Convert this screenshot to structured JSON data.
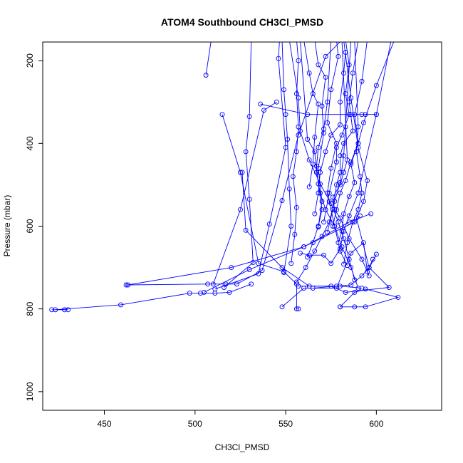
{
  "chart_data": {
    "type": "line",
    "title": "ATOM4 Southbound CH3Cl_PMSD",
    "xlabel": "CH3Cl_PMSD",
    "ylabel": "Pressure (mbar)",
    "xlim": [
      416,
      636
    ],
    "ylim": [
      1045,
      155
    ],
    "y_axis_inverted": true,
    "x_ticks": [
      450,
      500,
      550,
      600
    ],
    "y_ticks": [
      200,
      400,
      600,
      800,
      1000
    ],
    "markers": "open-circle",
    "grid": false,
    "legend": "none",
    "colors": {
      "series": "#0000ff",
      "axis": "#000000",
      "background": "#ffffff"
    },
    "series": [
      {
        "values": [
          [
            421,
            802
          ],
          [
            428,
            802
          ],
          [
            430,
            802
          ]
        ]
      },
      {
        "values": [
          [
            423,
            802
          ],
          [
            459,
            790
          ],
          [
            497,
            762
          ],
          [
            503,
            762
          ],
          [
            511,
            762
          ],
          [
            519,
            760
          ],
          [
            531,
            740
          ]
        ]
      },
      {
        "values": [
          [
            462,
            742
          ],
          [
            507,
            740
          ],
          [
            517,
            740
          ],
          [
            523,
            740
          ],
          [
            537,
            707
          ],
          [
            548,
            538
          ],
          [
            557,
            380
          ],
          [
            572,
            190
          ],
          [
            590,
            110
          ]
        ]
      },
      {
        "values": [
          [
            510,
            740
          ],
          [
            525,
            560
          ],
          [
            538,
            320
          ],
          [
            545,
            300
          ]
        ]
      },
      {
        "values": [
          [
            511,
            752
          ],
          [
            535,
            715
          ],
          [
            541,
            595
          ],
          [
            550,
            410
          ],
          [
            546,
            195
          ],
          [
            547,
            120
          ]
        ]
      },
      {
        "values": [
          [
            516,
            748
          ],
          [
            532,
            688
          ],
          [
            530,
            535
          ],
          [
            528,
            420
          ],
          [
            530,
            335
          ],
          [
            531,
            150
          ]
        ]
      },
      {
        "values": [
          [
            526,
            470
          ],
          [
            528,
            610
          ],
          [
            548,
            700
          ],
          [
            563,
            745
          ],
          [
            580,
            745
          ],
          [
            592,
            750
          ]
        ]
      },
      {
        "values": [
          [
            515,
            330
          ],
          [
            525,
            470
          ],
          [
            535,
            690
          ],
          [
            549,
            710
          ],
          [
            556,
            740
          ],
          [
            556,
            800
          ],
          [
            557,
            800
          ]
        ]
      },
      {
        "values": [
          [
            506,
            235
          ],
          [
            509,
            148
          ]
        ]
      },
      {
        "values": [
          [
            548,
            795
          ],
          [
            560,
            750
          ],
          [
            578,
            750
          ],
          [
            586,
            665
          ],
          [
            593,
            640
          ],
          [
            595,
            710
          ],
          [
            600,
            668
          ]
        ]
      },
      {
        "values": [
          [
            580,
            795
          ],
          [
            588,
            760
          ],
          [
            594,
            752
          ],
          [
            612,
            772
          ],
          [
            594,
            795
          ],
          [
            588,
            795
          ],
          [
            580,
            795
          ]
        ]
      },
      {
        "values": [
          [
            557,
            745
          ],
          [
            575,
            745
          ],
          [
            583,
            760
          ],
          [
            607,
            748
          ],
          [
            596,
            700
          ],
          [
            589,
            580
          ],
          [
            593,
            540
          ],
          [
            595,
            490
          ],
          [
            590,
            410
          ],
          [
            586,
            290
          ],
          [
            582,
            150
          ]
        ]
      },
      {
        "values": [
          [
            553,
            690
          ],
          [
            555,
            620
          ],
          [
            556,
            555
          ],
          [
            554,
            480
          ],
          [
            556,
            420
          ],
          [
            557,
            360
          ],
          [
            556,
            280
          ],
          [
            557,
            200
          ],
          [
            556,
            150
          ]
        ]
      },
      {
        "values": [
          [
            558,
            665
          ],
          [
            563,
            670
          ],
          [
            571,
            670
          ],
          [
            575,
            690
          ],
          [
            580,
            655
          ],
          [
            582,
            612
          ],
          [
            585,
            575
          ],
          [
            590,
            520
          ],
          [
            600,
            330
          ],
          [
            610,
            110
          ]
        ]
      },
      {
        "values": [
          [
            563,
            505
          ],
          [
            565,
            450
          ],
          [
            566,
            385
          ],
          [
            568,
            305
          ],
          [
            565,
            280
          ],
          [
            563,
            230
          ],
          [
            560,
            150
          ]
        ]
      },
      {
        "values": [
          [
            566,
            570
          ],
          [
            568,
            520
          ],
          [
            569,
            470
          ],
          [
            572,
            420
          ],
          [
            575,
            380
          ],
          [
            580,
            355
          ],
          [
            580,
            300
          ],
          [
            582,
            230
          ],
          [
            583,
            180
          ]
        ]
      },
      {
        "values": [
          [
            568,
            602
          ],
          [
            570,
            540
          ],
          [
            568,
            460
          ],
          [
            571,
            375
          ],
          [
            570,
            310
          ],
          [
            572,
            240
          ],
          [
            568,
            210
          ],
          [
            566,
            150
          ]
        ]
      },
      {
        "values": [
          [
            571,
            590
          ],
          [
            574,
            520
          ],
          [
            578,
            445
          ],
          [
            578,
            410
          ],
          [
            581,
            380
          ],
          [
            585,
            330
          ],
          [
            583,
            280
          ],
          [
            585,
            210
          ],
          [
            583,
            150
          ]
        ]
      },
      {
        "values": [
          [
            573,
            615
          ],
          [
            576,
            560
          ],
          [
            578,
            500
          ],
          [
            580,
            470
          ],
          [
            580,
            430
          ],
          [
            582,
            400
          ],
          [
            587,
            370
          ],
          [
            585,
            300
          ],
          [
            587,
            230
          ],
          [
            590,
            150
          ]
        ]
      },
      {
        "values": [
          [
            576,
            600
          ],
          [
            578,
            560
          ],
          [
            580,
            520
          ],
          [
            583,
            490
          ],
          [
            586,
            445
          ],
          [
            590,
            400
          ],
          [
            588,
            330
          ],
          [
            592,
            250
          ],
          [
            595,
            150
          ]
        ]
      },
      {
        "values": [
          [
            579,
            640
          ],
          [
            581,
            612
          ],
          [
            582,
            570
          ],
          [
            585,
            528
          ],
          [
            588,
            495
          ],
          [
            586,
            450
          ],
          [
            590,
            400
          ],
          [
            593,
            350
          ],
          [
            600,
            260
          ],
          [
            610,
            150
          ]
        ]
      },
      {
        "values": [
          [
            582,
            692
          ],
          [
            584,
            640
          ],
          [
            587,
            590
          ],
          [
            590,
            560
          ],
          [
            592,
            520
          ],
          [
            591,
            480
          ],
          [
            589,
            420
          ],
          [
            590,
            360
          ],
          [
            588,
            150
          ]
        ]
      },
      {
        "values": [
          [
            584,
            695
          ],
          [
            580,
            660
          ],
          [
            577,
            600
          ],
          [
            574,
            540
          ],
          [
            573,
            520
          ],
          [
            575,
            460
          ],
          [
            578,
            400
          ],
          [
            573,
            350
          ],
          [
            575,
            270
          ],
          [
            579,
            190
          ],
          [
            578,
            150
          ]
        ]
      },
      {
        "values": [
          [
            588,
            730
          ],
          [
            585,
            680
          ],
          [
            582,
            630
          ],
          [
            579,
            590
          ],
          [
            575,
            545
          ],
          [
            569,
            498
          ],
          [
            563,
            440
          ],
          [
            558,
            370
          ],
          [
            557,
            290
          ],
          [
            552,
            150
          ]
        ]
      },
      {
        "values": [
          [
            590,
            750
          ],
          [
            586,
            700
          ],
          [
            581,
            650
          ],
          [
            577,
            600
          ],
          [
            572,
            560
          ],
          [
            569,
            520
          ],
          [
            567,
            470
          ],
          [
            566,
            420
          ],
          [
            562,
            390
          ],
          [
            558,
            150
          ]
        ]
      },
      {
        "values": [
          [
            596,
            720
          ],
          [
            592,
            680
          ],
          [
            585,
            630
          ],
          [
            580,
            580
          ],
          [
            577,
            560
          ],
          [
            576,
            530
          ],
          [
            580,
            500
          ],
          [
            582,
            470
          ],
          [
            584,
            440
          ],
          [
            581,
            150
          ]
        ]
      },
      {
        "values": [
          [
            562,
            675
          ],
          [
            565,
            640
          ],
          [
            568,
            600
          ],
          [
            570,
            560
          ],
          [
            568,
            498
          ],
          [
            567,
            455
          ],
          [
            568,
            410
          ],
          [
            571,
            365
          ],
          [
            573,
            300
          ],
          [
            575,
            150
          ]
        ]
      },
      {
        "values": [
          [
            556,
            735
          ],
          [
            561,
            700
          ],
          [
            566,
            660
          ],
          [
            570,
            625
          ],
          [
            574,
            590
          ],
          [
            577,
            540
          ],
          [
            580,
            495
          ],
          [
            582,
            430
          ],
          [
            583,
            360
          ],
          [
            586,
            150
          ]
        ]
      },
      {
        "values": [
          [
            549,
            712
          ],
          [
            553,
            600
          ],
          [
            552,
            510
          ],
          [
            551,
            390
          ],
          [
            550,
            330
          ],
          [
            549,
            270
          ],
          [
            548,
            150
          ]
        ]
      },
      {
        "values": [
          [
            536,
            305
          ],
          [
            562,
            330
          ],
          [
            586,
            330
          ],
          [
            592,
            330
          ],
          [
            594,
            330
          ],
          [
            600,
            330
          ]
        ]
      },
      {
        "values": [
          [
            565,
            750
          ],
          [
            578,
            745
          ],
          [
            586,
            742
          ],
          [
            592,
            720
          ],
          [
            596,
            700
          ],
          [
            598,
            680
          ]
        ]
      },
      {
        "values": [
          [
            505,
            760
          ],
          [
            530,
            705
          ],
          [
            560,
            650
          ],
          [
            585,
            590
          ],
          [
            597,
            570
          ]
        ]
      },
      {
        "values": [
          [
            463,
            742
          ],
          [
            520,
            700
          ],
          [
            560,
            650
          ],
          [
            588,
            590
          ],
          [
            591,
            575
          ]
        ]
      }
    ]
  }
}
